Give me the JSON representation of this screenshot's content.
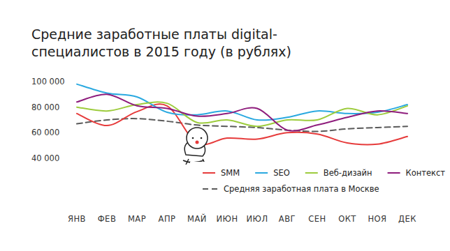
{
  "chart_data": {
    "type": "line",
    "title": "Средние заработные платы digital-\nспециалистов в 2015 году (в рублях)",
    "categories": [
      "ЯНВ",
      "ФЕВ",
      "МАР",
      "АПР",
      "МАЙ",
      "ИЮН",
      "ИЮЛ",
      "АВГ",
      "СЕН",
      "ОКТ",
      "НОЯ",
      "ДЕК"
    ],
    "series": [
      {
        "name": "SMM",
        "color": "#e63b3b",
        "values": [
          75000,
          65600,
          76500,
          81000,
          52000,
          55800,
          55000,
          60000,
          59000,
          52000,
          51000,
          57000
        ]
      },
      {
        "name": "SEO",
        "color": "#2aa9e0",
        "values": [
          98000,
          91000,
          88000,
          76000,
          74000,
          77000,
          70000,
          72000,
          77000,
          75000,
          76000,
          82000
        ]
      },
      {
        "name": "Веб-дизайн",
        "color": "#9dcc3d",
        "values": [
          80000,
          77000,
          82000,
          83000,
          68000,
          70000,
          65000,
          70000,
          70000,
          79000,
          74000,
          81000
        ]
      },
      {
        "name": "Контекст",
        "color": "#8e1c7c",
        "values": [
          84000,
          90000,
          81000,
          79000,
          73000,
          75000,
          79000,
          62000,
          66000,
          72000,
          77000,
          75000
        ]
      },
      {
        "name": "Средняя заработная плата в Москве",
        "color": "#5a5a5a",
        "line_style": "dashed",
        "values": [
          67000,
          70000,
          71000,
          69000,
          66000,
          65000,
          64000,
          62000,
          61000,
          63000,
          64000,
          65000
        ]
      }
    ],
    "ylim": [
      40000,
      100000
    ],
    "yticks": [
      {
        "value": 40000,
        "label": "40 000"
      },
      {
        "value": 60000,
        "label": "60 000"
      },
      {
        "value": 80000,
        "label": "80 000"
      },
      {
        "value": 100000,
        "label": "100 000"
      }
    ],
    "grid": false,
    "legend": "bottom-right"
  }
}
